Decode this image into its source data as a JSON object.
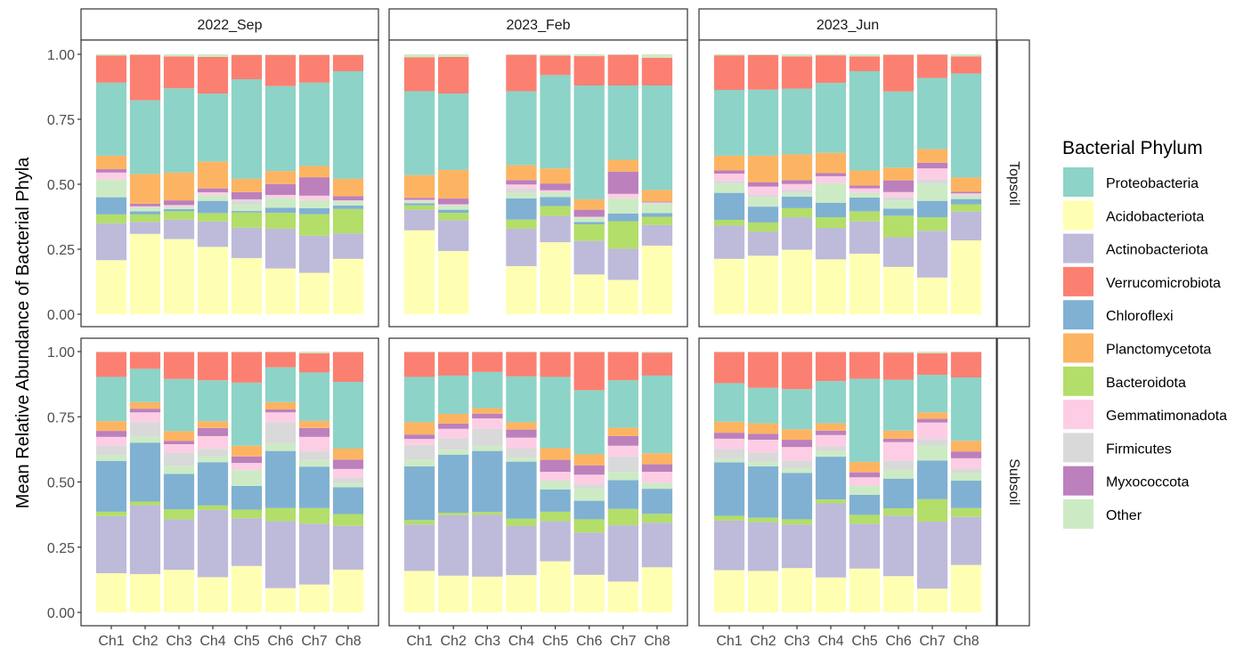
{
  "chart_data": {
    "type": "bar",
    "stacked": true,
    "title": "",
    "xlabel": "",
    "ylabel": "Mean Relative Abundance of Bacterial Phyla",
    "ylim": [
      0,
      1
    ],
    "yticks": [
      "0.00",
      "0.25",
      "0.50",
      "0.75",
      "1.00"
    ],
    "ytick_values": [
      0,
      0.25,
      0.5,
      0.75,
      1.0
    ],
    "categories": [
      "Ch1",
      "Ch2",
      "Ch3",
      "Ch4",
      "Ch5",
      "Ch6",
      "Ch7",
      "Ch8"
    ],
    "facet_columns": [
      "2022_Sep",
      "2023_Feb",
      "2023_Jun"
    ],
    "facet_rows": [
      "Topsoil",
      "Subsoil"
    ],
    "legend": {
      "title": "Bacterial Phylum",
      "position": "right",
      "entries": [
        {
          "name": "Proteobacteria",
          "color": "#8DD3C7"
        },
        {
          "name": "Acidobacteriota",
          "color": "#FFFFB3"
        },
        {
          "name": "Actinobacteriota",
          "color": "#BEBADA"
        },
        {
          "name": "Verrucomicrobiota",
          "color": "#FB8072"
        },
        {
          "name": "Chloroflexi",
          "color": "#80B1D3"
        },
        {
          "name": "Planctomycetota",
          "color": "#FDB462"
        },
        {
          "name": "Bacteroidota",
          "color": "#B3DE69"
        },
        {
          "name": "Gemmatimonadota",
          "color": "#FCCDE5"
        },
        {
          "name": "Firmicutes",
          "color": "#D9D9D9"
        },
        {
          "name": "Myxococcota",
          "color": "#BC80BD"
        },
        {
          "name": "Other",
          "color": "#CCEBC5"
        }
      ]
    },
    "stack_order": [
      "Acidobacteriota",
      "Actinobacteriota",
      "Bacteroidota",
      "Chloroflexi",
      "Other",
      "Firmicutes",
      "Gemmatimonadota",
      "Myxococcota",
      "Planctomycetota",
      "Proteobacteria",
      "Verrucomicrobiota"
    ],
    "panels": [
      {
        "row": "Topsoil",
        "col": "2022_Sep",
        "bars": [
          {
            "x": "Ch1",
            "values": [
              0.208,
              0.142,
              0.034,
              0.066,
              0.068,
              0.0,
              0.027,
              0.013,
              0.052,
              0.281,
              0.104
            ]
          },
          {
            "x": "Ch2",
            "values": [
              0.309,
              0.046,
              0.029,
              0.012,
              0.015,
              0.0,
              0.004,
              0.01,
              0.114,
              0.284,
              0.175
            ]
          },
          {
            "x": "Ch3",
            "values": [
              0.289,
              0.075,
              0.032,
              0.008,
              0.009,
              0.0,
              0.007,
              0.018,
              0.107,
              0.324,
              0.123
            ]
          },
          {
            "x": "Ch4",
            "values": [
              0.259,
              0.098,
              0.032,
              0.047,
              0.022,
              0.0,
              0.011,
              0.015,
              0.103,
              0.262,
              0.141
            ]
          },
          {
            "x": "Ch5",
            "values": [
              0.216,
              0.117,
              0.058,
              0.006,
              0.024,
              0.019,
              0.002,
              0.028,
              0.051,
              0.383,
              0.093
            ]
          },
          {
            "x": "Ch6",
            "values": [
              0.176,
              0.153,
              0.061,
              0.02,
              0.038,
              0.0,
              0.011,
              0.042,
              0.05,
              0.327,
              0.119
            ]
          },
          {
            "x": "Ch7",
            "values": [
              0.159,
              0.143,
              0.083,
              0.023,
              0.031,
              0.0,
              0.017,
              0.071,
              0.043,
              0.321,
              0.106
            ]
          },
          {
            "x": "Ch8",
            "values": [
              0.213,
              0.098,
              0.094,
              0.013,
              0.017,
              0.0,
              0.003,
              0.016,
              0.067,
              0.414,
              0.062
            ]
          }
        ]
      },
      {
        "row": "Topsoil",
        "col": "2023_Feb",
        "bars": [
          {
            "x": "Ch1",
            "values": [
              0.323,
              0.079,
              0.017,
              0.008,
              0.009,
              0.0,
              0.004,
              0.008,
              0.087,
              0.323,
              0.131
            ]
          },
          {
            "x": "Ch2",
            "values": [
              0.243,
              0.119,
              0.028,
              0.012,
              0.016,
              0.0,
              0.005,
              0.022,
              0.11,
              0.294,
              0.141
            ]
          },
          {
            "x": "Ch3",
            "values": []
          },
          {
            "x": "Ch4",
            "values": [
              0.185,
              0.144,
              0.035,
              0.082,
              0.021,
              0.016,
              0.016,
              0.017,
              0.057,
              0.285,
              0.14
            ]
          },
          {
            "x": "Ch5",
            "values": [
              0.277,
              0.101,
              0.038,
              0.035,
              0.018,
              0.0,
              0.008,
              0.026,
              0.058,
              0.359,
              0.075
            ]
          },
          {
            "x": "Ch6",
            "values": [
              0.153,
              0.129,
              0.064,
              0.009,
              0.017,
              0.0,
              0.003,
              0.027,
              0.04,
              0.438,
              0.113
            ]
          },
          {
            "x": "Ch7",
            "values": [
              0.132,
              0.12,
              0.106,
              0.029,
              0.059,
              0.0,
              0.017,
              0.086,
              0.045,
              0.286,
              0.118
            ]
          },
          {
            "x": "Ch8",
            "values": [
              0.264,
              0.079,
              0.032,
              0.014,
              0.038,
              0.0,
              0.003,
              0.003,
              0.045,
              0.402,
              0.107
            ]
          }
        ]
      },
      {
        "row": "Topsoil",
        "col": "2023_Jun",
        "bars": [
          {
            "x": "Ch1",
            "values": [
              0.213,
              0.128,
              0.022,
              0.104,
              0.034,
              0.012,
              0.028,
              0.012,
              0.057,
              0.253,
              0.133
            ]
          },
          {
            "x": "Ch2",
            "values": [
              0.225,
              0.093,
              0.035,
              0.061,
              0.036,
              0.009,
              0.032,
              0.017,
              0.102,
              0.254,
              0.133
            ]
          },
          {
            "x": "Ch3",
            "values": [
              0.248,
              0.125,
              0.035,
              0.044,
              0.015,
              0.011,
              0.023,
              0.015,
              0.099,
              0.253,
              0.124
            ]
          },
          {
            "x": "Ch4",
            "values": [
              0.211,
              0.121,
              0.041,
              0.056,
              0.075,
              0.0,
              0.027,
              0.012,
              0.078,
              0.269,
              0.106
            ]
          },
          {
            "x": "Ch5",
            "values": [
              0.233,
              0.124,
              0.039,
              0.053,
              0.018,
              0.0,
              0.017,
              0.011,
              0.058,
              0.382,
              0.057
            ]
          },
          {
            "x": "Ch6",
            "values": [
              0.182,
              0.114,
              0.083,
              0.027,
              0.032,
              0.012,
              0.02,
              0.045,
              0.049,
              0.293,
              0.141
            ]
          },
          {
            "x": "Ch7",
            "values": [
              0.141,
              0.18,
              0.052,
              0.063,
              0.065,
              0.017,
              0.043,
              0.022,
              0.052,
              0.274,
              0.09
            ]
          },
          {
            "x": "Ch8",
            "values": [
              0.284,
              0.111,
              0.028,
              0.02,
              0.015,
              0.0,
              0.007,
              0.006,
              0.055,
              0.4,
              0.066
            ]
          }
        ]
      },
      {
        "row": "Subsoil",
        "col": "2022_Sep",
        "bars": [
          {
            "x": "Ch1",
            "values": [
              0.15,
              0.219,
              0.017,
              0.195,
              0.021,
              0.037,
              0.034,
              0.023,
              0.037,
              0.17,
              0.095
            ]
          },
          {
            "x": "Ch2",
            "values": [
              0.147,
              0.264,
              0.014,
              0.226,
              0.025,
              0.053,
              0.038,
              0.014,
              0.025,
              0.128,
              0.064
            ]
          },
          {
            "x": "Ch3",
            "values": [
              0.163,
              0.194,
              0.038,
              0.136,
              0.031,
              0.051,
              0.032,
              0.013,
              0.037,
              0.2,
              0.103
            ]
          },
          {
            "x": "Ch4",
            "values": [
              0.135,
              0.258,
              0.017,
              0.166,
              0.022,
              0.029,
              0.049,
              0.031,
              0.026,
              0.157,
              0.108
            ]
          },
          {
            "x": "Ch5",
            "values": [
              0.178,
              0.183,
              0.033,
              0.091,
              0.06,
              0.0,
              0.028,
              0.025,
              0.041,
              0.242,
              0.117
            ]
          },
          {
            "x": "Ch6",
            "values": [
              0.093,
              0.257,
              0.05,
              0.219,
              0.028,
              0.082,
              0.038,
              0.011,
              0.028,
              0.134,
              0.058
            ]
          },
          {
            "x": "Ch7",
            "values": [
              0.107,
              0.233,
              0.06,
              0.159,
              0.026,
              0.034,
              0.054,
              0.034,
              0.027,
              0.186,
              0.074
            ]
          },
          {
            "x": "Ch8",
            "values": [
              0.164,
              0.168,
              0.045,
              0.103,
              0.017,
              0.019,
              0.034,
              0.036,
              0.042,
              0.256,
              0.114
            ]
          }
        ]
      },
      {
        "row": "Subsoil",
        "col": "2023_Feb",
        "bars": [
          {
            "x": "Ch1",
            "values": [
              0.159,
              0.178,
              0.017,
              0.206,
              0.025,
              0.057,
              0.023,
              0.017,
              0.047,
              0.174,
              0.095
            ]
          },
          {
            "x": "Ch2",
            "values": [
              0.141,
              0.232,
              0.009,
              0.223,
              0.019,
              0.043,
              0.037,
              0.02,
              0.037,
              0.147,
              0.09
            ]
          },
          {
            "x": "Ch3",
            "values": [
              0.137,
              0.237,
              0.011,
              0.234,
              0.019,
              0.066,
              0.04,
              0.018,
              0.021,
              0.139,
              0.076
            ]
          },
          {
            "x": "Ch4",
            "values": [
              0.143,
              0.188,
              0.028,
              0.219,
              0.016,
              0.034,
              0.042,
              0.031,
              0.028,
              0.176,
              0.093
            ]
          },
          {
            "x": "Ch5",
            "values": [
              0.196,
              0.154,
              0.036,
              0.085,
              0.034,
              0.0,
              0.034,
              0.046,
              0.045,
              0.273,
              0.095
            ]
          },
          {
            "x": "Ch6",
            "values": [
              0.144,
              0.162,
              0.051,
              0.071,
              0.048,
              0.014,
              0.038,
              0.036,
              0.042,
              0.246,
              0.146
            ]
          },
          {
            "x": "Ch7",
            "values": [
              0.118,
              0.216,
              0.063,
              0.11,
              0.032,
              0.059,
              0.041,
              0.037,
              0.032,
              0.182,
              0.108
            ]
          },
          {
            "x": "Ch8",
            "values": [
              0.173,
              0.171,
              0.034,
              0.096,
              0.023,
              0.0,
              0.042,
              0.029,
              0.042,
              0.298,
              0.088
            ]
          }
        ]
      },
      {
        "row": "Subsoil",
        "col": "2023_Jun",
        "bars": [
          {
            "x": "Ch1",
            "values": [
              0.162,
              0.19,
              0.018,
              0.205,
              0.013,
              0.038,
              0.04,
              0.023,
              0.042,
              0.148,
              0.119
            ]
          },
          {
            "x": "Ch2",
            "values": [
              0.159,
              0.187,
              0.017,
              0.197,
              0.017,
              0.036,
              0.049,
              0.023,
              0.04,
              0.136,
              0.137
            ]
          },
          {
            "x": "Ch3",
            "values": [
              0.17,
              0.167,
              0.02,
              0.178,
              0.018,
              0.03,
              0.051,
              0.028,
              0.04,
              0.154,
              0.142
            ]
          },
          {
            "x": "Ch4",
            "values": [
              0.134,
              0.284,
              0.015,
              0.164,
              0.022,
              0.018,
              0.043,
              0.017,
              0.028,
              0.162,
              0.111
            ]
          },
          {
            "x": "Ch5",
            "values": [
              0.168,
              0.172,
              0.034,
              0.077,
              0.035,
              0.0,
              0.032,
              0.019,
              0.04,
              0.319,
              0.102
            ]
          },
          {
            "x": "Ch6",
            "values": [
              0.139,
              0.232,
              0.028,
              0.114,
              0.035,
              0.033,
              0.072,
              0.013,
              0.031,
              0.195,
              0.104
            ]
          },
          {
            "x": "Ch7",
            "values": [
              0.091,
              0.257,
              0.086,
              0.148,
              0.058,
              0.025,
              0.063,
              0.014,
              0.025,
              0.144,
              0.083
            ]
          },
          {
            "x": "Ch8",
            "values": [
              0.182,
              0.184,
              0.034,
              0.105,
              0.029,
              0.017,
              0.04,
              0.026,
              0.041,
              0.243,
              0.097
            ]
          }
        ]
      }
    ]
  }
}
